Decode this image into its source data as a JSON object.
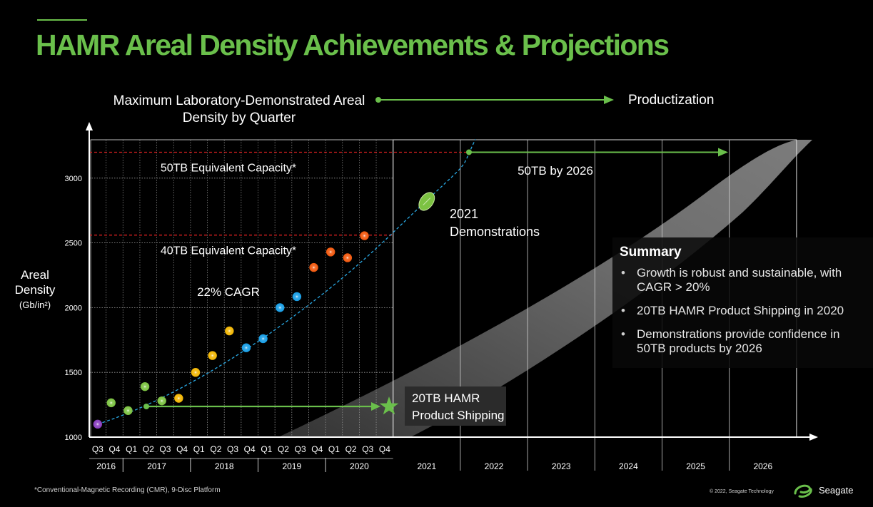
{
  "title": "HAMR Areal Density Achievements & Projections",
  "headings": {
    "lab": "Maximum Laboratory-Demonstrated Areal Density by Quarter",
    "productization": "Productization"
  },
  "ylabel": {
    "main": "Areal Density",
    "unit": "(Gb/in²)"
  },
  "colors": {
    "accent": "#6abf4b",
    "purple": "#8a3fc0",
    "green": "#7cc242",
    "yellow": "#f2b705",
    "blue": "#1a9fe6",
    "orange": "#f25a10",
    "trend": "#29a6e0",
    "threshold": "#d41f1f",
    "band": "#7a7a7a"
  },
  "chart_data": {
    "type": "scatter",
    "yticks": [
      1000,
      1500,
      2000,
      2500,
      3000
    ],
    "ylim": [
      1000,
      3250
    ],
    "quarters": [
      "Q3",
      "Q4",
      "Q1",
      "Q2",
      "Q3",
      "Q4",
      "Q1",
      "Q2",
      "Q3",
      "Q4",
      "Q1",
      "Q2",
      "Q3",
      "Q4",
      "Q1",
      "Q2",
      "Q3",
      "Q4"
    ],
    "years": [
      {
        "label": "2016",
        "quarters": 2
      },
      {
        "label": "2017",
        "quarters": 4
      },
      {
        "label": "2018",
        "quarters": 4
      },
      {
        "label": "2019",
        "quarters": 4
      },
      {
        "label": "2020",
        "quarters": 4
      }
    ],
    "future_years": [
      "2021",
      "2022",
      "2023",
      "2024",
      "2025",
      "2026"
    ],
    "points": [
      {
        "q": 0.5,
        "y": 1100,
        "color": "purple"
      },
      {
        "q": 1.3,
        "y": 1265,
        "color": "green"
      },
      {
        "q": 2.3,
        "y": 1205,
        "color": "green"
      },
      {
        "q": 3.3,
        "y": 1390,
        "color": "green"
      },
      {
        "q": 4.3,
        "y": 1280,
        "color": "green"
      },
      {
        "q": 5.3,
        "y": 1300,
        "color": "yellow"
      },
      {
        "q": 6.3,
        "y": 1500,
        "color": "yellow"
      },
      {
        "q": 7.3,
        "y": 1630,
        "color": "yellow"
      },
      {
        "q": 8.3,
        "y": 1820,
        "color": "yellow"
      },
      {
        "q": 9.3,
        "y": 1690,
        "color": "blue"
      },
      {
        "q": 10.3,
        "y": 1760,
        "color": "blue"
      },
      {
        "q": 11.3,
        "y": 2000,
        "color": "blue"
      },
      {
        "q": 12.3,
        "y": 2085,
        "color": "blue"
      },
      {
        "q": 13.3,
        "y": 2310,
        "color": "orange"
      },
      {
        "q": 14.3,
        "y": 2430,
        "color": "orange"
      },
      {
        "q": 15.3,
        "y": 2385,
        "color": "orange"
      },
      {
        "q": 16.3,
        "y": 2555,
        "color": "orange"
      }
    ],
    "demo_2021": {
      "x": 2021.5,
      "y": 2820
    },
    "thresholds": [
      {
        "y": 3200,
        "label": "50TB Equivalent Capacity*"
      },
      {
        "y": 2560,
        "label": "40TB Equivalent Capacity*"
      }
    ],
    "cagr_label": "22% CAGR",
    "annotations": {
      "demonstrations": [
        "2021",
        "Demonstrations"
      ],
      "by2026": "50TB by 2026",
      "shipping": [
        "20TB HAMR",
        "Product Shipping"
      ]
    }
  },
  "summary": {
    "heading": "Summary",
    "bullets": [
      "Growth is robust and sustainable, with CAGR > 20%",
      "20TB HAMR Product Shipping in 2020",
      "Demonstrations provide confidence in 50TB products by 2026"
    ]
  },
  "footer": {
    "footnote": "*Conventional-Magnetic Recording (CMR), 9-Disc Platform",
    "copyright": "© 2022, Seagate Technology",
    "brand": "Seagate"
  }
}
